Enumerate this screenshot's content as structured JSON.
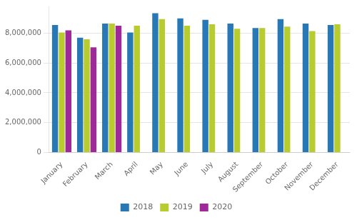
{
  "chart_data": {
    "type": "bar",
    "categories": [
      "January",
      "February",
      "March",
      "April",
      "May",
      "June",
      "July",
      "August",
      "September",
      "October",
      "November",
      "December"
    ],
    "series": [
      {
        "name": "2018",
        "color": "#2878b5",
        "values": [
          8550000,
          7700000,
          8650000,
          8050000,
          9350000,
          9000000,
          8900000,
          8650000,
          8350000,
          8950000,
          8650000,
          8550000
        ]
      },
      {
        "name": "2019",
        "color": "#b8cc30",
        "values": [
          8050000,
          7600000,
          8650000,
          8500000,
          8950000,
          8500000,
          8600000,
          8300000,
          8350000,
          8450000,
          8150000,
          8600000
        ]
      },
      {
        "name": "2020",
        "color": "#a0299a",
        "values": [
          8200000,
          7050000,
          8500000,
          null,
          null,
          null,
          null,
          null,
          null,
          null,
          null,
          null
        ]
      }
    ],
    "ylim": [
      0,
      9800000
    ],
    "yticks": [
      0,
      {
        "value": 2000000,
        "label": "2,000,000"
      },
      {
        "value": 4000000,
        "label": "4,000,000"
      },
      {
        "value": 6000000,
        "label": "6,000,000"
      },
      {
        "value": 8000000,
        "label": "8,000,000"
      }
    ],
    "grid": true,
    "legend": "bottom"
  }
}
